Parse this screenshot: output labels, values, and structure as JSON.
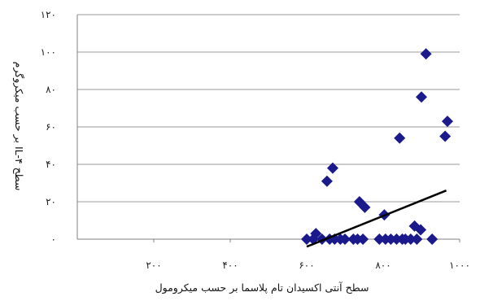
{
  "chart_data": {
    "type": "scatter",
    "xlabel": "سطح آنتی اکسیدان تام پلاسما بر حسب میکرومول",
    "ylabel": "سطح IL-۴ بر حسب میکروگرم",
    "xlim": [
      0,
      1000
    ],
    "ylim": [
      0,
      120
    ],
    "x_ticks": [
      200,
      400,
      600,
      800,
      1000
    ],
    "x_tick_labels": [
      "۲۰۰",
      "۴۰۰",
      "۶۰۰",
      "۸۰۰",
      "۱۰۰۰"
    ],
    "y_ticks": [
      0,
      20,
      40,
      60,
      80,
      100,
      120
    ],
    "y_tick_labels": [
      "۰",
      "۲۰",
      "۴۰",
      "۶۰",
      "۸۰",
      "۱۰۰",
      "۱۲۰"
    ],
    "grid": "horizontal",
    "legend": "none",
    "marker": "diamond",
    "colors": {
      "points": "#1a1a8c",
      "trend": "#000000",
      "grid": "#9a9a9a",
      "axis": "#808080"
    },
    "points": [
      {
        "x": 600,
        "y": 0
      },
      {
        "x": 617,
        "y": 0
      },
      {
        "x": 624,
        "y": 3
      },
      {
        "x": 640,
        "y": 0
      },
      {
        "x": 653,
        "y": 31
      },
      {
        "x": 668,
        "y": 38
      },
      {
        "x": 660,
        "y": 0
      },
      {
        "x": 673,
        "y": 0
      },
      {
        "x": 688,
        "y": 0
      },
      {
        "x": 700,
        "y": 0
      },
      {
        "x": 722,
        "y": 0
      },
      {
        "x": 733,
        "y": 0
      },
      {
        "x": 738,
        "y": 20
      },
      {
        "x": 752,
        "y": 17
      },
      {
        "x": 747,
        "y": 0
      },
      {
        "x": 790,
        "y": 0
      },
      {
        "x": 803,
        "y": 13
      },
      {
        "x": 806,
        "y": 0
      },
      {
        "x": 820,
        "y": 0
      },
      {
        "x": 835,
        "y": 0
      },
      {
        "x": 843,
        "y": 54
      },
      {
        "x": 850,
        "y": 0
      },
      {
        "x": 858,
        "y": 0
      },
      {
        "x": 872,
        "y": 0
      },
      {
        "x": 882,
        "y": 7
      },
      {
        "x": 888,
        "y": 0
      },
      {
        "x": 898,
        "y": 5
      },
      {
        "x": 900,
        "y": 76
      },
      {
        "x": 912,
        "y": 99
      },
      {
        "x": 928,
        "y": 0
      },
      {
        "x": 962,
        "y": 55
      },
      {
        "x": 968,
        "y": 63
      }
    ],
    "trendline": {
      "x": [
        600,
        965
      ],
      "y": [
        -4,
        26
      ]
    }
  }
}
